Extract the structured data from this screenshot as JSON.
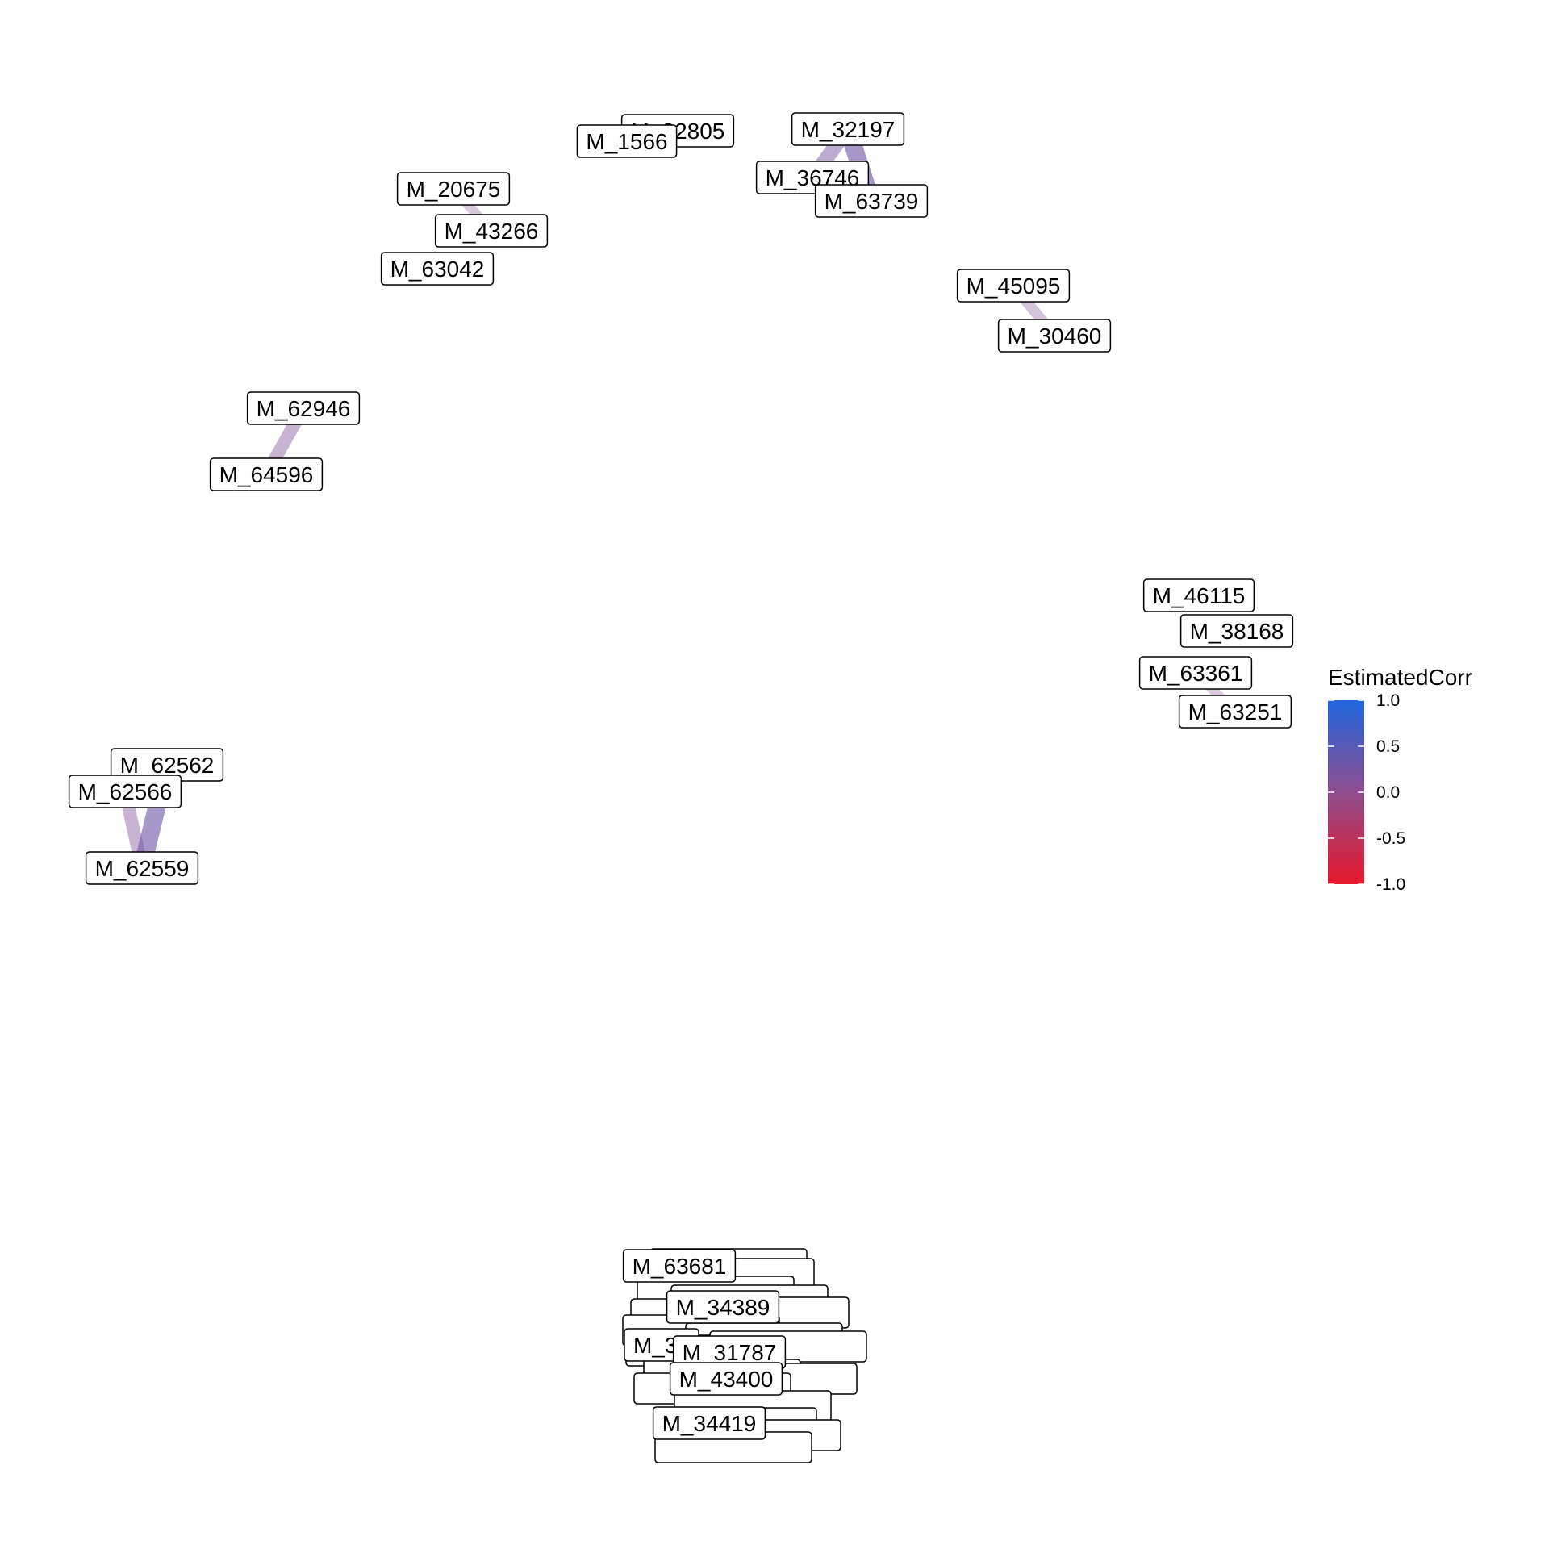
{
  "legend": {
    "title": "EstimatedCorr",
    "ticks": [
      "1.0",
      "0.5",
      "0.0",
      "-0.5",
      "-1.0"
    ],
    "tick_values": [
      1.0,
      0.5,
      0.0,
      -0.5,
      -1.0
    ],
    "colors": {
      "high": "#2166e0",
      "mid": "#8e4e8e",
      "low": "#e8172a"
    }
  },
  "nodes": [
    {
      "id": "M_32805"
    },
    {
      "id": "M_1566"
    },
    {
      "id": "M_32197"
    },
    {
      "id": "M_36746"
    },
    {
      "id": "M_63739"
    },
    {
      "id": "M_20675"
    },
    {
      "id": "M_43266"
    },
    {
      "id": "M_63042"
    },
    {
      "id": "M_45095"
    },
    {
      "id": "M_30460"
    },
    {
      "id": "M_62946"
    },
    {
      "id": "M_64596"
    },
    {
      "id": "M_46115"
    },
    {
      "id": "M_38168"
    },
    {
      "id": "M_63361"
    },
    {
      "id": "M_63251"
    },
    {
      "id": "M_62562"
    },
    {
      "id": "M_62566"
    },
    {
      "id": "M_62559"
    },
    {
      "id": "M_63681"
    },
    {
      "id": "M_34389"
    },
    {
      "id": "M_37"
    },
    {
      "id": "M_31787"
    },
    {
      "id": "M_43400"
    },
    {
      "id": "M_34419"
    }
  ],
  "edges": [
    {
      "source": "M_32197",
      "target": "M_36746",
      "corr": 0.2
    },
    {
      "source": "M_32197",
      "target": "M_63739",
      "corr": 0.3
    },
    {
      "source": "M_20675",
      "target": "M_43266",
      "corr": 0.05
    },
    {
      "source": "M_45095",
      "target": "M_30460",
      "corr": 0.08
    },
    {
      "source": "M_62946",
      "target": "M_64596",
      "corr": 0.15
    },
    {
      "source": "M_63361",
      "target": "M_63251",
      "corr": 0.05
    },
    {
      "source": "M_62566",
      "target": "M_62559",
      "corr": 0.15
    },
    {
      "source": "M_62562",
      "target": "M_62559",
      "corr": 0.3
    }
  ]
}
